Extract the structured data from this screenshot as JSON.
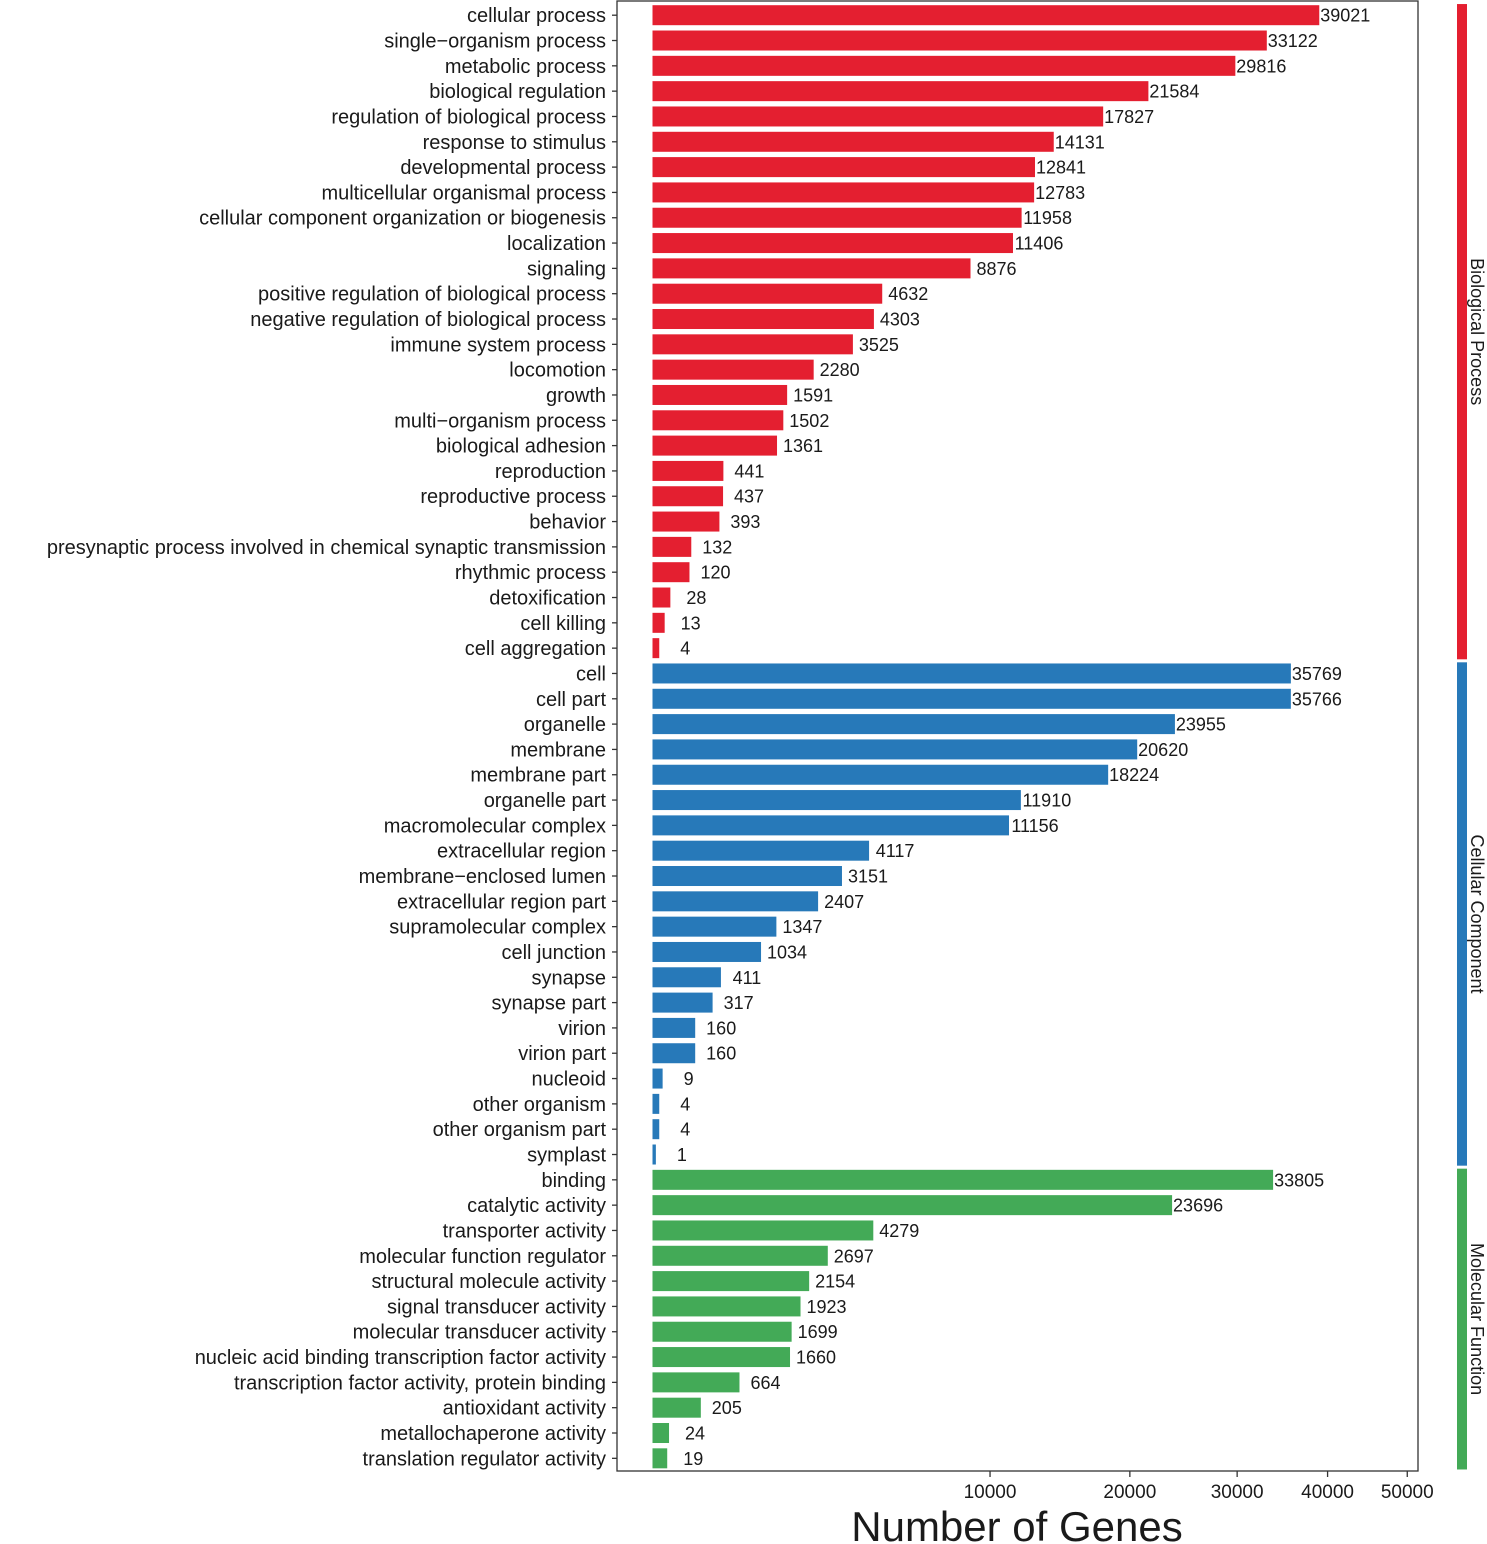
{
  "chart_data": {
    "type": "bar",
    "orientation": "horizontal",
    "xlabel": "Number of Genes",
    "ylabel": "",
    "x_scale": "sqrt",
    "xlim": [
      0,
      50000
    ],
    "x_ticks": [
      10000,
      20000,
      30000,
      40000,
      50000
    ],
    "x_tick_labels": [
      "10000",
      "20000",
      "30000",
      "40000",
      "50000"
    ],
    "grid": false,
    "legend": "right-side group strips",
    "groups": [
      {
        "name": "Biological Process",
        "color": "#e41f30",
        "categories": [
          "cellular process",
          "single−organism process",
          "metabolic process",
          "biological regulation",
          "regulation of biological process",
          "response to stimulus",
          "developmental process",
          "multicellular organismal process",
          "cellular component organization or biogenesis",
          "localization",
          "signaling",
          "positive regulation of biological process",
          "negative regulation of biological process",
          "immune system process",
          "locomotion",
          "growth",
          "multi−organism process",
          "biological adhesion",
          "reproduction",
          "reproductive process",
          "behavior",
          "presynaptic process involved in chemical synaptic transmission",
          "rhythmic process",
          "detoxification",
          "cell killing",
          "cell aggregation"
        ],
        "values": [
          39021,
          33122,
          29816,
          21584,
          17827,
          14131,
          12841,
          12783,
          11958,
          11406,
          8876,
          4632,
          4303,
          3525,
          2280,
          1591,
          1502,
          1361,
          441,
          437,
          393,
          132,
          120,
          28,
          13,
          4
        ]
      },
      {
        "name": "Cellular Component",
        "color": "#2779b9",
        "categories": [
          "cell",
          "cell part",
          "organelle",
          "membrane",
          "membrane part",
          "organelle part",
          "macromolecular complex",
          "extracellular region",
          "membrane−enclosed lumen",
          "extracellular region part",
          "supramolecular complex",
          "cell junction",
          "synapse",
          "synapse part",
          "virion",
          "virion part",
          "nucleoid",
          "other organism",
          "other organism part",
          "symplast"
        ],
        "values": [
          35769,
          35766,
          23955,
          20620,
          18224,
          11910,
          11156,
          4117,
          3151,
          2407,
          1347,
          1034,
          411,
          317,
          160,
          160,
          9,
          4,
          4,
          1
        ]
      },
      {
        "name": "Molecular Function",
        "color": "#43aa57",
        "categories": [
          "binding",
          "catalytic activity",
          "transporter activity",
          "molecular function regulator",
          "structural molecule activity",
          "signal transducer activity",
          "molecular transducer activity",
          "nucleic acid binding transcription factor activity",
          "transcription factor activity, protein binding",
          "antioxidant activity",
          "metallochaperone activity",
          "translation regulator activity"
        ],
        "values": [
          33805,
          23696,
          4279,
          2697,
          2154,
          1923,
          1699,
          1660,
          664,
          205,
          24,
          19
        ]
      }
    ]
  }
}
